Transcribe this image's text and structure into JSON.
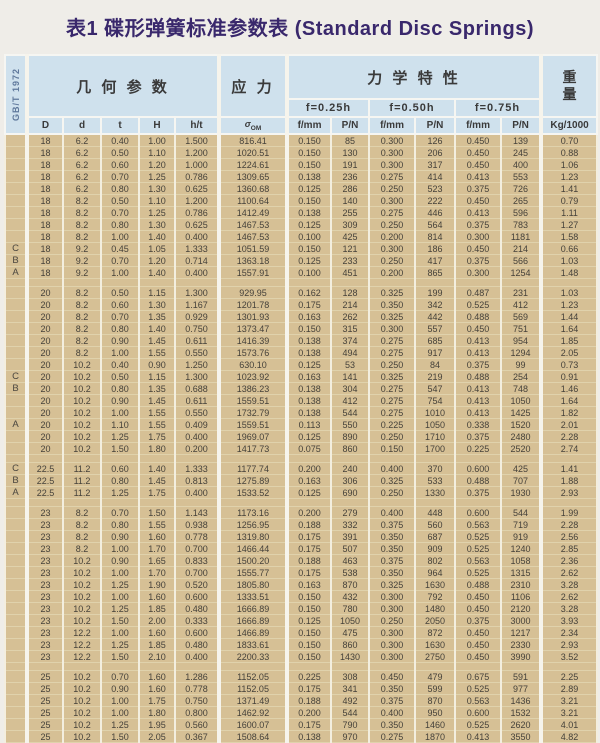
{
  "title": "表1 碟形弹簧标准参数表 (Standard Disc Springs)",
  "header": {
    "standard": "GB/T 1972",
    "geometry": "几 何 参 数",
    "stress": "应 力",
    "mechanical": "力 学 特 性",
    "weight": [
      "重",
      "量"
    ],
    "weight_unit": "Kg/1000",
    "deflections": [
      "f=0.25h",
      "f=0.50h",
      "f=0.75h"
    ],
    "geo_cols": [
      "D",
      "d",
      "t",
      "H",
      "h/t"
    ],
    "sigma": {
      "base": "σ",
      "sub": "OM"
    },
    "mech_cols": [
      "f/mm",
      "P/N",
      "f/mm",
      "P/N",
      "f/mm",
      "P/N"
    ]
  },
  "colors": {
    "header_bg": "#cfe1ed",
    "cell_bg": "#d6c095",
    "gridline": "#f3eedf",
    "title_text": "#39286c",
    "body_text": "#45413a"
  },
  "sections": [
    {
      "rows": [
        [
          "",
          "18",
          "6.2",
          "0.40",
          "1.00",
          "1.500",
          "816.41",
          "0.150",
          "85",
          "0.300",
          "126",
          "0.450",
          "139",
          "0.70"
        ],
        [
          "",
          "18",
          "6.2",
          "0.50",
          "1.10",
          "1.200",
          "1020.51",
          "0.150",
          "130",
          "0.300",
          "206",
          "0.450",
          "245",
          "0.88"
        ],
        [
          "",
          "18",
          "6.2",
          "0.60",
          "1.20",
          "1.000",
          "1224.61",
          "0.150",
          "191",
          "0.300",
          "317",
          "0.450",
          "400",
          "1.06"
        ],
        [
          "",
          "18",
          "6.2",
          "0.70",
          "1.25",
          "0.786",
          "1309.65",
          "0.138",
          "236",
          "0.275",
          "414",
          "0.413",
          "553",
          "1.23"
        ],
        [
          "",
          "18",
          "6.2",
          "0.80",
          "1.30",
          "0.625",
          "1360.68",
          "0.125",
          "286",
          "0.250",
          "523",
          "0.375",
          "726",
          "1.41"
        ],
        [
          "",
          "18",
          "8.2",
          "0.50",
          "1.10",
          "1.200",
          "1100.64",
          "0.150",
          "140",
          "0.300",
          "222",
          "0.450",
          "265",
          "0.79"
        ],
        [
          "",
          "18",
          "8.2",
          "0.70",
          "1.25",
          "0.786",
          "1412.49",
          "0.138",
          "255",
          "0.275",
          "446",
          "0.413",
          "596",
          "1.11"
        ],
        [
          "",
          "18",
          "8.2",
          "0.80",
          "1.30",
          "0.625",
          "1467.53",
          "0.125",
          "309",
          "0.250",
          "564",
          "0.375",
          "783",
          "1.27"
        ],
        [
          "",
          "18",
          "8.2",
          "1.00",
          "1.40",
          "0.400",
          "1467.53",
          "0.100",
          "425",
          "0.200",
          "814",
          "0.300",
          "1181",
          "1.58"
        ],
        [
          "C",
          "18",
          "9.2",
          "0.45",
          "1.05",
          "1.333",
          "1051.59",
          "0.150",
          "121",
          "0.300",
          "186",
          "0.450",
          "214",
          "0.66"
        ],
        [
          "B",
          "18",
          "9.2",
          "0.70",
          "1.20",
          "0.714",
          "1363.18",
          "0.125",
          "233",
          "0.250",
          "417",
          "0.375",
          "566",
          "1.03"
        ],
        [
          "A",
          "18",
          "9.2",
          "1.00",
          "1.40",
          "0.400",
          "1557.91",
          "0.100",
          "451",
          "0.200",
          "865",
          "0.300",
          "1254",
          "1.48"
        ]
      ]
    },
    {
      "rows": [
        [
          "",
          "20",
          "8.2",
          "0.50",
          "1.15",
          "1.300",
          "929.95",
          "0.162",
          "128",
          "0.325",
          "199",
          "0.487",
          "231",
          "1.03"
        ],
        [
          "",
          "20",
          "8.2",
          "0.60",
          "1.30",
          "1.167",
          "1201.78",
          "0.175",
          "214",
          "0.350",
          "342",
          "0.525",
          "412",
          "1.23"
        ],
        [
          "",
          "20",
          "8.2",
          "0.70",
          "1.35",
          "0.929",
          "1301.93",
          "0.163",
          "262",
          "0.325",
          "442",
          "0.488",
          "569",
          "1.44"
        ],
        [
          "",
          "20",
          "8.2",
          "0.80",
          "1.40",
          "0.750",
          "1373.47",
          "0.150",
          "315",
          "0.300",
          "557",
          "0.450",
          "751",
          "1.64"
        ],
        [
          "",
          "20",
          "8.2",
          "0.90",
          "1.45",
          "0.611",
          "1416.39",
          "0.138",
          "374",
          "0.275",
          "685",
          "0.413",
          "954",
          "1.85"
        ],
        [
          "",
          "20",
          "8.2",
          "1.00",
          "1.55",
          "0.550",
          "1573.76",
          "0.138",
          "494",
          "0.275",
          "917",
          "0.413",
          "1294",
          "2.05"
        ],
        [
          "",
          "20",
          "10.2",
          "0.40",
          "0.90",
          "1.250",
          "630.10",
          "0.125",
          "53",
          "0.250",
          "84",
          "0.375",
          "99",
          "0.73"
        ],
        [
          "C",
          "20",
          "10.2",
          "0.50",
          "1.15",
          "1.300",
          "1023.92",
          "0.163",
          "141",
          "0.325",
          "219",
          "0.488",
          "254",
          "0.91"
        ],
        [
          "B",
          "20",
          "10.2",
          "0.80",
          "1.35",
          "0.688",
          "1386.23",
          "0.138",
          "304",
          "0.275",
          "547",
          "0.413",
          "748",
          "1.46"
        ],
        [
          "",
          "20",
          "10.2",
          "0.90",
          "1.45",
          "0.611",
          "1559.51",
          "0.138",
          "412",
          "0.275",
          "754",
          "0.413",
          "1050",
          "1.64"
        ],
        [
          "",
          "20",
          "10.2",
          "1.00",
          "1.55",
          "0.550",
          "1732.79",
          "0.138",
          "544",
          "0.275",
          "1010",
          "0.413",
          "1425",
          "1.82"
        ],
        [
          "A",
          "20",
          "10.2",
          "1.10",
          "1.55",
          "0.409",
          "1559.51",
          "0.113",
          "550",
          "0.225",
          "1050",
          "0.338",
          "1520",
          "2.01"
        ],
        [
          "",
          "20",
          "10.2",
          "1.25",
          "1.75",
          "0.400",
          "1969.07",
          "0.125",
          "890",
          "0.250",
          "1710",
          "0.375",
          "2480",
          "2.28"
        ],
        [
          "",
          "20",
          "10.2",
          "1.50",
          "1.80",
          "0.200",
          "1417.73",
          "0.075",
          "860",
          "0.150",
          "1700",
          "0.225",
          "2520",
          "2.74"
        ]
      ]
    },
    {
      "rows": [
        [
          "C",
          "22.5",
          "11.2",
          "0.60",
          "1.40",
          "1.333",
          "1177.74",
          "0.200",
          "240",
          "0.400",
          "370",
          "0.600",
          "425",
          "1.41"
        ],
        [
          "B",
          "22.5",
          "11.2",
          "0.80",
          "1.45",
          "0.813",
          "1275.89",
          "0.163",
          "306",
          "0.325",
          "533",
          "0.488",
          "707",
          "1.88"
        ],
        [
          "A",
          "22.5",
          "11.2",
          "1.25",
          "1.75",
          "0.400",
          "1533.52",
          "0.125",
          "690",
          "0.250",
          "1330",
          "0.375",
          "1930",
          "2.93"
        ]
      ]
    },
    {
      "rows": [
        [
          "",
          "23",
          "8.2",
          "0.70",
          "1.50",
          "1.143",
          "1173.16",
          "0.200",
          "279",
          "0.400",
          "448",
          "0.600",
          "544",
          "1.99"
        ],
        [
          "",
          "23",
          "8.2",
          "0.80",
          "1.55",
          "0.938",
          "1256.95",
          "0.188",
          "332",
          "0.375",
          "560",
          "0.563",
          "719",
          "2.28"
        ],
        [
          "",
          "23",
          "8.2",
          "0.90",
          "1.60",
          "0.778",
          "1319.80",
          "0.175",
          "391",
          "0.350",
          "687",
          "0.525",
          "919",
          "2.56"
        ],
        [
          "",
          "23",
          "8.2",
          "1.00",
          "1.70",
          "0.700",
          "1466.44",
          "0.175",
          "507",
          "0.350",
          "909",
          "0.525",
          "1240",
          "2.85"
        ],
        [
          "",
          "23",
          "10.2",
          "0.90",
          "1.65",
          "0.833",
          "1500.20",
          "0.188",
          "463",
          "0.375",
          "802",
          "0.563",
          "1058",
          "2.36"
        ],
        [
          "",
          "23",
          "10.2",
          "1.00",
          "1.70",
          "0.700",
          "1555.77",
          "0.175",
          "538",
          "0.350",
          "964",
          "0.525",
          "1315",
          "2.62"
        ],
        [
          "",
          "23",
          "10.2",
          "1.25",
          "1.90",
          "0.520",
          "1805.80",
          "0.163",
          "870",
          "0.325",
          "1630",
          "0.488",
          "2310",
          "3.28"
        ],
        [
          "",
          "23",
          "10.2",
          "1.00",
          "1.60",
          "0.600",
          "1333.51",
          "0.150",
          "432",
          "0.300",
          "792",
          "0.450",
          "1106",
          "2.62"
        ],
        [
          "",
          "23",
          "10.2",
          "1.25",
          "1.85",
          "0.480",
          "1666.89",
          "0.150",
          "780",
          "0.300",
          "1480",
          "0.450",
          "2120",
          "3.28"
        ],
        [
          "",
          "23",
          "10.2",
          "1.50",
          "2.00",
          "0.333",
          "1666.89",
          "0.125",
          "1050",
          "0.250",
          "2050",
          "0.375",
          "3000",
          "3.93"
        ],
        [
          "",
          "23",
          "12.2",
          "1.00",
          "1.60",
          "0.600",
          "1466.89",
          "0.150",
          "475",
          "0.300",
          "872",
          "0.450",
          "1217",
          "2.34"
        ],
        [
          "",
          "23",
          "12.2",
          "1.25",
          "1.85",
          "0.480",
          "1833.61",
          "0.150",
          "860",
          "0.300",
          "1630",
          "0.450",
          "2330",
          "2.93"
        ],
        [
          "",
          "23",
          "12.2",
          "1.50",
          "2.10",
          "0.400",
          "2200.33",
          "0.150",
          "1430",
          "0.300",
          "2750",
          "0.450",
          "3990",
          "3.52"
        ]
      ]
    },
    {
      "rows": [
        [
          "",
          "25",
          "10.2",
          "0.70",
          "1.60",
          "1.286",
          "1152.05",
          "0.225",
          "308",
          "0.450",
          "479",
          "0.675",
          "591",
          "2.25"
        ],
        [
          "",
          "25",
          "10.2",
          "0.90",
          "1.60",
          "0.778",
          "1152.05",
          "0.175",
          "341",
          "0.350",
          "599",
          "0.525",
          "977",
          "2.89"
        ],
        [
          "",
          "25",
          "10.2",
          "1.00",
          "1.75",
          "0.750",
          "1371.49",
          "0.188",
          "492",
          "0.375",
          "870",
          "0.563",
          "1436",
          "3.21"
        ],
        [
          "",
          "25",
          "10.2",
          "1.00",
          "1.80",
          "0.800",
          "1462.92",
          "0.200",
          "544",
          "0.400",
          "950",
          "0.600",
          "1532",
          "3.21"
        ],
        [
          "",
          "25",
          "10.2",
          "1.25",
          "1.95",
          "0.560",
          "1600.07",
          "0.175",
          "790",
          "0.350",
          "1460",
          "0.525",
          "2620",
          "4.01"
        ],
        [
          "",
          "25",
          "10.2",
          "1.50",
          "2.05",
          "0.367",
          "1508.64",
          "0.138",
          "970",
          "0.275",
          "1870",
          "0.413",
          "3550",
          "4.82"
        ]
      ]
    }
  ]
}
